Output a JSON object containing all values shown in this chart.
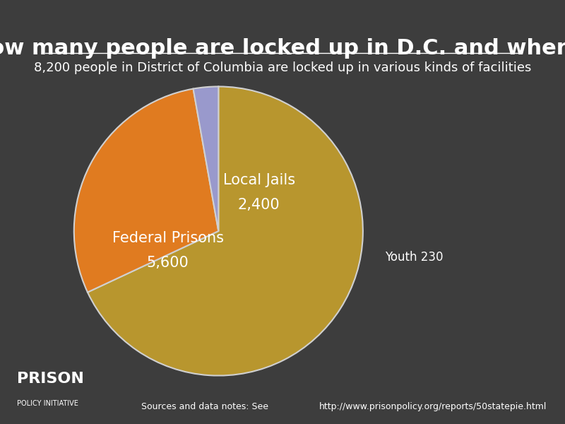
{
  "title": "How many people are locked up in D.C. and where?",
  "subtitle": "8,200 people in District of Columbia are locked up in various kinds of facilities",
  "background_color": "#3d3d3d",
  "text_color": "#ffffff",
  "slices": [
    {
      "label": "Federal Prisons",
      "value": 5600,
      "color": "#b8962e"
    },
    {
      "label": "Local Jails",
      "value": 2400,
      "color": "#e07b20"
    },
    {
      "label": "Youth",
      "value": 230,
      "color": "#9999cc"
    }
  ],
  "pie_edge_color": "#d0d0d0",
  "pie_edge_width": 1.5,
  "source_text": "Sources and data notes: See http://www.prisonpolicy.org/reports/50statepie.html",
  "source_url": "http://www.prisonpolicy.org/reports/50statepie.html",
  "logo_text_line1": "PRISON",
  "logo_text_line2": "POLICY INITIATIVE",
  "title_fontsize": 22,
  "subtitle_fontsize": 13,
  "label_fontsize": 15,
  "value_fontsize": 15
}
